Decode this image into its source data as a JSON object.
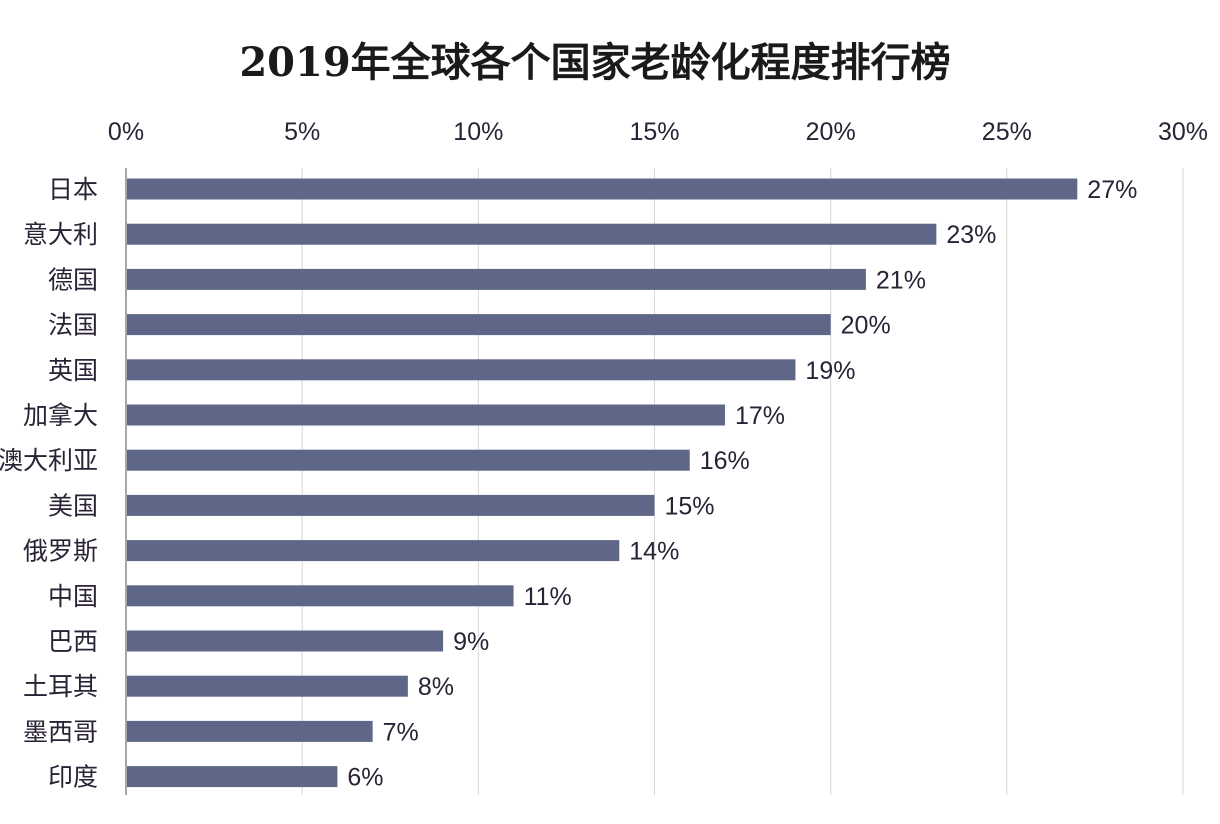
{
  "chart_data": {
    "type": "bar",
    "orientation": "horizontal",
    "title": "2019年全球各个国家老龄化程度排行榜",
    "xlabel": "",
    "ylabel": "",
    "xlim": [
      0,
      30
    ],
    "x_ticks": [
      "0%",
      "5%",
      "10%",
      "15%",
      "20%",
      "25%",
      "30%"
    ],
    "x_axis_position": "top",
    "grid": true,
    "categories": [
      "日本",
      "意大利",
      "德国",
      "法国",
      "英国",
      "加拿大",
      "澳大利亚",
      "美国",
      "俄罗斯",
      "中国",
      "巴西",
      "土耳其",
      "墨西哥",
      "印度"
    ],
    "values": [
      27,
      23,
      21,
      20,
      19,
      17,
      16,
      15,
      14,
      11,
      9,
      8,
      7,
      6
    ],
    "value_labels": [
      "27%",
      "23%",
      "21%",
      "20%",
      "19%",
      "17%",
      "16%",
      "15%",
      "14%",
      "11%",
      "9%",
      "8%",
      "7%",
      "6%"
    ],
    "bar_color": "#5f6789"
  }
}
